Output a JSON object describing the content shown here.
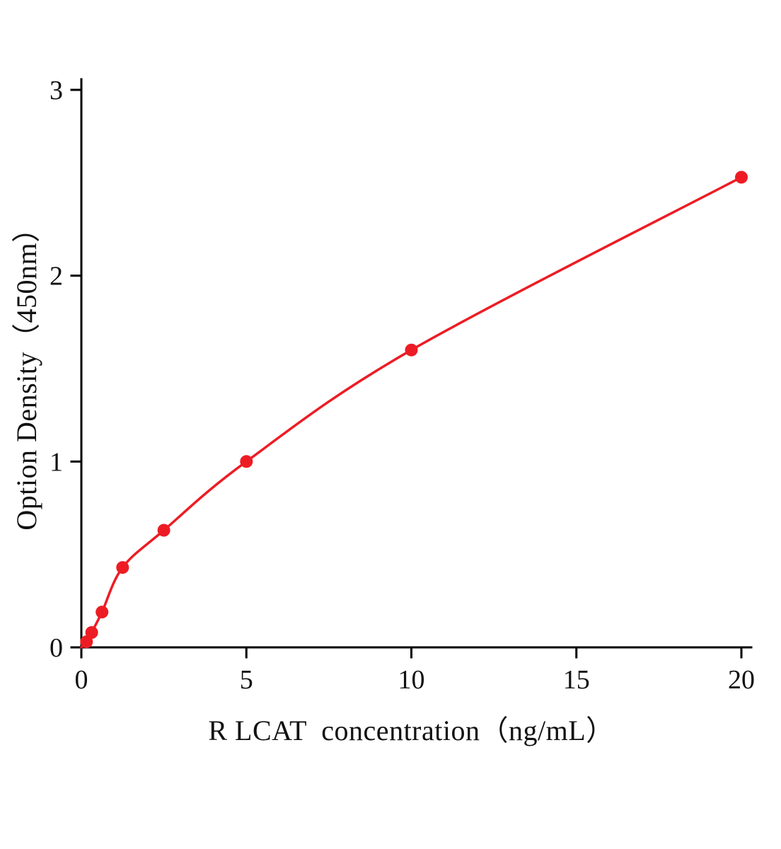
{
  "chart_data": {
    "type": "scatter",
    "title": "",
    "xlabel": "R LCAT  concentration（ng/mL）",
    "ylabel": "Option Density（450nm）",
    "x": [
      0.156,
      0.3125,
      0.625,
      1.25,
      2.5,
      5,
      10,
      20
    ],
    "y": [
      0.03,
      0.08,
      0.19,
      0.43,
      0.63,
      1.0,
      1.6,
      2.53
    ],
    "xlim": [
      0,
      20.5
    ],
    "ylim": [
      0,
      3
    ],
    "xticks": [
      0,
      5,
      10,
      15,
      20
    ],
    "yticks": [
      0,
      1,
      2,
      3
    ],
    "grid": false,
    "legend_position": "none",
    "curve": "power-law fit through origin",
    "point_color": "#ed1c24",
    "line_color": "#ed1c24",
    "axis_color": "#000000",
    "background": "#ffffff"
  }
}
